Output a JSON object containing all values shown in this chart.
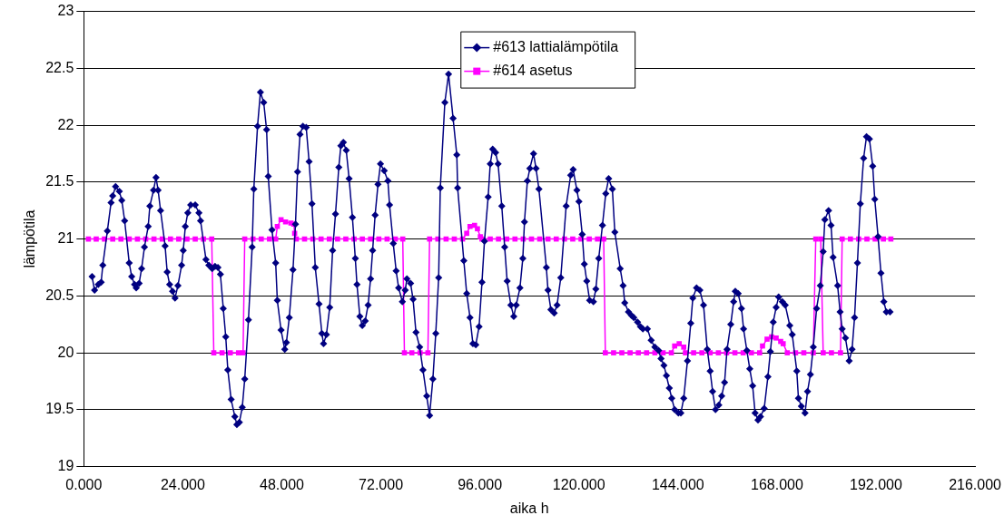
{
  "chart_data": {
    "type": "line",
    "xlabel": "aika h",
    "ylabel": "lämpötila",
    "xlim": [
      0,
      216
    ],
    "xticks": [
      {
        "value": 0,
        "label": "0.000"
      },
      {
        "value": 24,
        "label": "24.000"
      },
      {
        "value": 48,
        "label": "48.000"
      },
      {
        "value": 72,
        "label": "72.000"
      },
      {
        "value": 96,
        "label": "96.000"
      },
      {
        "value": 120,
        "label": "120.000"
      },
      {
        "value": 144,
        "label": "144.000"
      },
      {
        "value": 168,
        "label": "168.000"
      },
      {
        "value": 192,
        "label": "192.000"
      },
      {
        "value": 216,
        "label": "216.000"
      }
    ],
    "ylim": [
      19,
      23
    ],
    "yticks": [
      19,
      19.5,
      20,
      20.5,
      21,
      21.5,
      22,
      22.5,
      23
    ],
    "grid": "y",
    "legend": "top",
    "line_style": "solid",
    "series": [
      {
        "name": "#613 lattialämpötila",
        "color": "#000080",
        "marker": "diamond",
        "x": [
          2.0,
          2.6,
          3.5,
          4.2,
          4.6,
          5.7,
          6.6,
          7.0,
          7.7,
          8.6,
          9.2,
          9.9,
          11.0,
          11.6,
          12.3,
          12.7,
          13.4,
          14.0,
          14.7,
          15.6,
          16.0,
          16.9,
          17.5,
          18.0,
          18.6,
          19.7,
          20.2,
          20.8,
          21.5,
          22.1,
          22.8,
          23.7,
          24.1,
          24.6,
          25.2,
          25.9,
          27.0,
          27.9,
          28.3,
          29.6,
          30.3,
          31.1,
          31.8,
          32.5,
          33.1,
          33.8,
          34.4,
          34.9,
          35.7,
          36.6,
          37.1,
          37.7,
          38.4,
          39.0,
          39.9,
          40.8,
          41.2,
          42.1,
          42.8,
          43.6,
          44.3,
          44.7,
          45.6,
          46.5,
          46.9,
          47.8,
          48.7,
          49.1,
          49.8,
          50.7,
          51.3,
          51.8,
          52.4,
          53.1,
          53.9,
          54.6,
          55.3,
          56.1,
          57.0,
          57.7,
          58.1,
          58.8,
          59.6,
          60.3,
          61.0,
          61.8,
          62.3,
          62.9,
          63.6,
          64.3,
          65.1,
          65.8,
          66.2,
          66.9,
          67.5,
          68.2,
          68.9,
          69.5,
          70.0,
          70.6,
          71.3,
          71.9,
          72.8,
          73.7,
          74.1,
          75.0,
          75.7,
          76.3,
          77.2,
          77.9,
          78.3,
          79.2,
          79.8,
          80.5,
          81.4,
          82.2,
          83.1,
          83.8,
          84.6,
          85.3,
          86.0,
          86.4,
          87.5,
          88.4,
          89.5,
          90.4,
          90.6,
          92.1,
          92.8,
          93.6,
          94.3,
          95.0,
          95.8,
          96.5,
          97.1,
          98.0,
          98.5,
          99.1,
          99.8,
          100.4,
          101.3,
          102.0,
          102.6,
          103.5,
          104.2,
          104.8,
          105.7,
          106.4,
          106.8,
          107.5,
          108.1,
          109.0,
          109.6,
          110.3,
          112.1,
          112.5,
          113.2,
          114.0,
          114.7,
          115.6,
          116.9,
          118.0,
          118.6,
          119.5,
          120.0,
          120.8,
          121.3,
          121.9,
          122.6,
          123.5,
          124.1,
          124.8,
          125.7,
          126.5,
          127.2,
          128.1,
          128.7,
          130.0,
          130.7,
          131.1,
          132.0,
          132.7,
          133.3,
          134.2,
          134.9,
          135.5,
          136.6,
          137.5,
          138.4,
          139.3,
          139.9,
          140.6,
          141.2,
          141.9,
          142.5,
          143.2,
          144.1,
          144.7,
          145.4,
          146.3,
          147.1,
          147.6,
          148.5,
          149.3,
          150.2,
          151.1,
          151.8,
          152.4,
          153.1,
          153.9,
          154.6,
          155.3,
          155.9,
          156.8,
          157.5,
          157.9,
          158.6,
          159.4,
          159.9,
          160.7,
          161.4,
          162.1,
          162.7,
          163.4,
          164.0,
          164.9,
          165.8,
          166.4,
          167.1,
          167.8,
          168.4,
          169.3,
          170.0,
          171.1,
          171.7,
          172.8,
          173.2,
          173.9,
          174.8,
          175.4,
          176.1,
          176.8,
          177.6,
          178.5,
          179.2,
          179.6,
          180.5,
          181.1,
          181.6,
          182.7,
          183.3,
          183.8,
          184.6,
          185.5,
          186.2,
          186.8,
          187.5,
          188.2,
          189.0,
          189.7,
          190.4,
          191.2,
          191.7,
          192.5,
          193.2,
          193.9,
          194.5,
          195.4
        ],
        "values": [
          20.67,
          20.55,
          20.6,
          20.62,
          20.77,
          21.07,
          21.32,
          21.38,
          21.46,
          21.42,
          21.34,
          21.16,
          20.79,
          20.67,
          20.6,
          20.57,
          20.61,
          20.74,
          20.93,
          21.11,
          21.29,
          21.43,
          21.54,
          21.43,
          21.25,
          20.94,
          20.71,
          20.6,
          20.54,
          20.48,
          20.59,
          20.77,
          20.9,
          21.11,
          21.23,
          21.3,
          21.3,
          21.23,
          21.16,
          20.82,
          20.77,
          20.74,
          20.76,
          20.75,
          20.69,
          20.39,
          20.14,
          19.85,
          19.59,
          19.44,
          19.37,
          19.39,
          19.52,
          19.77,
          20.29,
          20.93,
          21.44,
          21.99,
          22.29,
          22.2,
          21.96,
          21.55,
          21.08,
          20.79,
          20.46,
          20.2,
          20.03,
          20.09,
          20.31,
          20.73,
          21.13,
          21.59,
          21.92,
          21.99,
          21.98,
          21.68,
          21.31,
          20.75,
          20.43,
          20.17,
          20.08,
          20.16,
          20.4,
          20.9,
          21.22,
          21.63,
          21.82,
          21.85,
          21.78,
          21.53,
          21.19,
          20.83,
          20.6,
          20.32,
          20.24,
          20.28,
          20.42,
          20.65,
          20.9,
          21.21,
          21.48,
          21.66,
          21.6,
          21.51,
          21.3,
          20.96,
          20.72,
          20.57,
          20.45,
          20.55,
          20.65,
          20.61,
          20.47,
          20.18,
          20.05,
          19.85,
          19.62,
          19.45,
          19.77,
          20.17,
          20.66,
          21.45,
          22.2,
          22.45,
          22.06,
          21.74,
          21.45,
          20.81,
          20.52,
          20.31,
          20.08,
          20.07,
          20.23,
          20.62,
          20.98,
          21.37,
          21.66,
          21.79,
          21.76,
          21.66,
          21.29,
          20.93,
          20.63,
          20.42,
          20.32,
          20.42,
          20.57,
          20.83,
          21.15,
          21.51,
          21.62,
          21.75,
          21.62,
          21.44,
          20.75,
          20.55,
          20.38,
          20.35,
          20.42,
          20.66,
          21.29,
          21.56,
          21.61,
          21.43,
          21.33,
          21.04,
          20.78,
          20.63,
          20.46,
          20.45,
          20.56,
          20.83,
          21.12,
          21.4,
          21.53,
          21.44,
          21.06,
          20.74,
          20.59,
          20.44,
          20.36,
          20.33,
          20.31,
          20.27,
          20.23,
          20.21,
          20.21,
          20.11,
          20.05,
          20.02,
          19.95,
          19.89,
          19.8,
          19.69,
          19.6,
          19.5,
          19.47,
          19.47,
          19.6,
          19.93,
          20.26,
          20.48,
          20.57,
          20.55,
          20.42,
          20.03,
          19.84,
          19.66,
          19.5,
          19.54,
          19.62,
          19.74,
          20.03,
          20.25,
          20.45,
          20.54,
          20.52,
          20.39,
          20.21,
          20.02,
          19.86,
          19.71,
          19.47,
          19.41,
          19.44,
          19.51,
          19.79,
          20.01,
          20.27,
          20.4,
          20.49,
          20.45,
          20.42,
          20.24,
          20.16,
          19.84,
          19.6,
          19.53,
          19.47,
          19.66,
          19.81,
          20.05,
          20.39,
          20.59,
          20.89,
          21.17,
          21.25,
          21.12,
          20.84,
          20.59,
          20.36,
          20.21,
          20.13,
          19.93,
          20.03,
          20.31,
          20.79,
          21.31,
          21.71,
          21.9,
          21.88,
          21.64,
          21.35,
          21.02,
          20.7,
          20.45,
          20.36,
          20.36
        ]
      },
      {
        "name": "#614 asetus",
        "color": "#ff00ff",
        "marker": "square",
        "x": [
          1.1,
          3,
          5,
          7,
          9,
          11,
          13,
          15,
          17,
          19,
          21,
          23,
          25,
          27,
          29,
          31.0,
          31.5,
          33.5,
          35.5,
          37.5,
          38.6,
          39.0,
          41,
          43,
          45,
          46.5,
          46.9,
          47.8,
          48.9,
          50.2,
          50.9,
          51.1,
          51.5,
          53.5,
          55.5,
          57.5,
          59.5,
          61.5,
          63.5,
          65.5,
          67.5,
          69.5,
          71.5,
          73.5,
          75.5,
          77.3,
          77.7,
          79.5,
          81.5,
          83.4,
          83.8,
          85.8,
          87.8,
          89.8,
          91.8,
          92.8,
          93.6,
          94.7,
          95.4,
          96.1,
          96.5,
          98.5,
          100.5,
          102.5,
          104.5,
          106.5,
          108.5,
          110.5,
          112.5,
          114.5,
          116.5,
          118.5,
          120.5,
          122.5,
          124.5,
          126.0,
          126.4,
          128.4,
          130.4,
          132.4,
          134.4,
          136.4,
          138.4,
          140.4,
          142.4,
          143.2,
          144.3,
          145.4,
          145.8,
          147.8,
          149.8,
          151.8,
          153.8,
          155.8,
          157.8,
          159.8,
          161.8,
          163.8,
          164.5,
          165.6,
          166.7,
          167.8,
          168.9,
          169.5,
          170.5,
          172.5,
          174.5,
          176.8,
          177.4,
          178.6,
          179.2,
          181.2,
          183.4,
          183.8,
          185.8,
          187.8,
          189.8,
          191.8,
          193.8,
          195.6
        ],
        "values": [
          21,
          21,
          21,
          21,
          21,
          21,
          21,
          21,
          21,
          21,
          21,
          21,
          21,
          21,
          21,
          21,
          20,
          20,
          20,
          20,
          20,
          21,
          21,
          21,
          21,
          21,
          21.11,
          21.17,
          21.15,
          21.14,
          21.13,
          21.05,
          21,
          21,
          21,
          21,
          21,
          21,
          21,
          21,
          21,
          21,
          21,
          21,
          21,
          21,
          20,
          20,
          20,
          20,
          21,
          21,
          21,
          21,
          21,
          21.05,
          21.11,
          21.12,
          21.09,
          21.02,
          21,
          21,
          21,
          21,
          21,
          21,
          21,
          21,
          21,
          21,
          21,
          21,
          21,
          21,
          21,
          21,
          20,
          20,
          20,
          20,
          20,
          20,
          20,
          20,
          20,
          20.06,
          20.08,
          20.05,
          20,
          20,
          20,
          20,
          20,
          20,
          20,
          20,
          20,
          20,
          20.06,
          20.12,
          20.14,
          20.13,
          20.1,
          20.08,
          20,
          20,
          20,
          20,
          21,
          21,
          20,
          20,
          20,
          21,
          21,
          21,
          21,
          21,
          21,
          21
        ]
      }
    ]
  }
}
